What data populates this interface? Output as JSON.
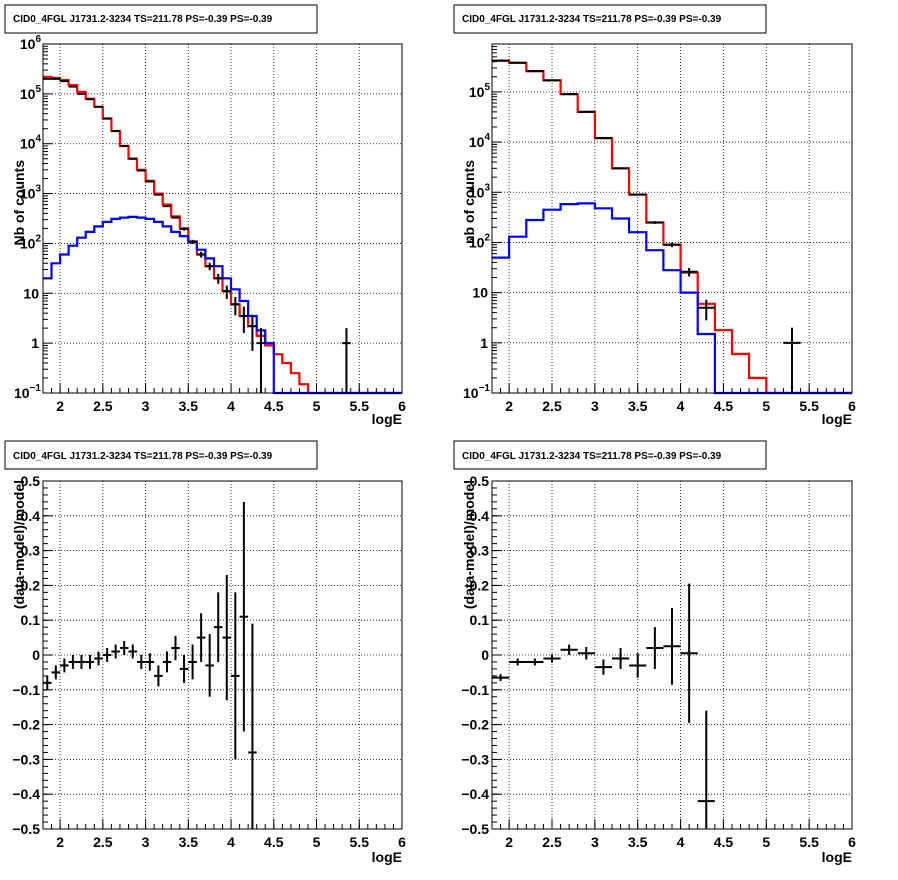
{
  "chart_data": [
    {
      "type": "histogram",
      "panel": "top-left",
      "title": "CID0_4FGL J1731.2-3234 TS=211.78 PS=-0.39 PS=-0.39",
      "xlabel": "logE",
      "ylabel": "Nb of counts",
      "xlim": [
        1.8,
        6.0
      ],
      "ylim": [
        0.1,
        1000000
      ],
      "yscale": "log",
      "grid": true,
      "x_ticks": [
        "2",
        "2.5",
        "3",
        "3.5",
        "4",
        "4.5",
        "5",
        "5.5",
        "6"
      ],
      "y_ticks": [
        {
          "value": 0.1,
          "base": "10",
          "exp": "−1"
        },
        {
          "value": 1,
          "base": "1",
          "exp": ""
        },
        {
          "value": 10,
          "base": "10",
          "exp": ""
        },
        {
          "value": 100,
          "base": "10",
          "exp": "2"
        },
        {
          "value": 1000,
          "base": "10",
          "exp": "3"
        },
        {
          "value": 10000,
          "base": "10",
          "exp": "4"
        },
        {
          "value": 100000,
          "base": "10",
          "exp": "5"
        },
        {
          "value": 1000000,
          "base": "10",
          "exp": "6"
        }
      ],
      "bin_edges_start": 1.8,
      "bin_width": 0.1,
      "series": [
        {
          "color": "#ff0000",
          "values": [
            220000,
            210000,
            190000,
            150000,
            110000,
            80000,
            55000,
            32000,
            18000,
            9000,
            5000,
            3000,
            1800,
            1000,
            600,
            350,
            200,
            110,
            60,
            35,
            20,
            11,
            6,
            3.5,
            2.2,
            1.4,
            0.9,
            0.6,
            0.4,
            0.25,
            0.15,
            0.1,
            0.1,
            0.1,
            0.1,
            0.1,
            0.1,
            0.1,
            0.1,
            0.1,
            0.1,
            0.1
          ]
        },
        {
          "color": "#0000ff",
          "values": [
            20,
            40,
            60,
            90,
            130,
            170,
            220,
            270,
            310,
            330,
            340,
            330,
            310,
            270,
            220,
            170,
            140,
            105,
            75,
            50,
            35,
            20,
            12,
            7,
            3.5,
            1.8,
            1,
            0.1,
            0.1,
            0.1,
            0.1,
            0.1,
            0.1,
            0.1,
            0.1,
            0.1,
            0.1,
            0.1,
            0.1,
            0.1,
            0.1,
            0.1
          ]
        }
      ],
      "data_points": {
        "x": [
          1.85,
          1.95,
          2.05,
          2.15,
          2.25,
          2.35,
          2.45,
          2.55,
          2.65,
          2.75,
          2.85,
          2.95,
          3.05,
          3.15,
          3.25,
          3.35,
          3.45,
          3.55,
          3.65,
          3.75,
          3.85,
          3.95,
          4.05,
          4.15,
          4.25,
          4.35,
          5.35
        ],
        "y": [
          200000,
          200000,
          180000,
          140000,
          100000,
          78000,
          55000,
          32000,
          18000,
          9000,
          5000,
          2900,
          1750,
          950,
          560,
          330,
          195,
          108,
          60,
          35,
          20,
          11,
          6,
          3.5,
          2.2,
          1,
          1
        ],
        "yerr": [
          450,
          450,
          420,
          370,
          320,
          280,
          235,
          180,
          135,
          95,
          70,
          54,
          42,
          31,
          24,
          18,
          14,
          10,
          8,
          6,
          4.5,
          3.3,
          2.4,
          1.9,
          1.5,
          1,
          1
        ]
      }
    },
    {
      "type": "histogram",
      "panel": "top-right",
      "title": "CID0_4FGL J1731.2-3234 TS=211.78 PS=-0.39 PS=-0.39",
      "xlabel": "logE",
      "ylabel": "nb of counts",
      "xlim": [
        1.8,
        6.0
      ],
      "ylim": [
        0.1,
        900000
      ],
      "yscale": "log",
      "grid": true,
      "x_ticks": [
        "2",
        "2.5",
        "3",
        "3.5",
        "4",
        "4.5",
        "5",
        "5.5",
        "6"
      ],
      "y_ticks": [
        {
          "value": 0.1,
          "base": "10",
          "exp": "−1"
        },
        {
          "value": 1,
          "base": "1",
          "exp": ""
        },
        {
          "value": 10,
          "base": "10",
          "exp": ""
        },
        {
          "value": 100,
          "base": "10",
          "exp": "2"
        },
        {
          "value": 1000,
          "base": "10",
          "exp": "3"
        },
        {
          "value": 10000,
          "base": "10",
          "exp": "4"
        },
        {
          "value": 100000,
          "base": "10",
          "exp": "5"
        }
      ],
      "bin_edges_start": 1.8,
      "bin_width": 0.2,
      "series": [
        {
          "color": "#ff0000",
          "values": [
            420000,
            380000,
            260000,
            170000,
            90000,
            40000,
            12000,
            3000,
            900,
            250,
            90,
            25,
            6,
            1.8,
            0.6,
            0.2,
            0.1,
            0.1,
            0.1,
            0.1,
            0.1
          ]
        },
        {
          "color": "#0000ff",
          "values": [
            50,
            130,
            280,
            450,
            580,
            600,
            480,
            300,
            160,
            70,
            28,
            10,
            1.5,
            0.1,
            0.1,
            0.1,
            0.1,
            0.1,
            0.1,
            0.1,
            0.1
          ]
        }
      ],
      "data_points": {
        "x": [
          1.9,
          2.1,
          2.3,
          2.5,
          2.7,
          2.9,
          3.1,
          3.3,
          3.5,
          3.7,
          3.9,
          4.1,
          4.3,
          5.3
        ],
        "y": [
          420000,
          380000,
          260000,
          170000,
          90000,
          40000,
          12000,
          3000,
          900,
          250,
          90,
          26,
          5,
          1
        ],
        "yerr": [
          650,
          620,
          510,
          410,
          300,
          200,
          110,
          55,
          30,
          16,
          9.5,
          5,
          2.2,
          1
        ]
      }
    },
    {
      "type": "scatter",
      "panel": "bottom-left",
      "title": "CID0_4FGL J1731.2-3234 TS=211.78 PS=-0.39 PS=-0.39",
      "xlabel": "logE",
      "ylabel": "(data-model)/model",
      "xlim": [
        1.8,
        6.0
      ],
      "ylim": [
        -0.5,
        0.5
      ],
      "grid": true,
      "x_ticks": [
        "2",
        "2.5",
        "3",
        "3.5",
        "4",
        "4.5",
        "5",
        "5.5",
        "6"
      ],
      "y_ticks": [
        "−0.5",
        "−0.4",
        "−0.3",
        "−0.2",
        "−0.1",
        "0",
        "0.1",
        "0.2",
        "0.3",
        "0.4",
        "0.5"
      ],
      "y_tick_values": [
        -0.5,
        -0.4,
        -0.3,
        -0.2,
        -0.1,
        0,
        0.1,
        0.2,
        0.3,
        0.4,
        0.5
      ],
      "data_points": {
        "x": [
          1.85,
          1.95,
          2.05,
          2.15,
          2.25,
          2.35,
          2.45,
          2.55,
          2.65,
          2.75,
          2.85,
          2.95,
          3.05,
          3.15,
          3.25,
          3.35,
          3.45,
          3.55,
          3.65,
          3.75,
          3.85,
          3.95,
          4.05,
          4.15,
          4.25
        ],
        "xerr": 0.05,
        "y": [
          -0.08,
          -0.05,
          -0.03,
          -0.02,
          -0.02,
          -0.02,
          -0.01,
          0.0,
          0.01,
          0.02,
          0.01,
          -0.02,
          -0.02,
          -0.06,
          -0.02,
          0.02,
          -0.04,
          -0.02,
          0.05,
          -0.03,
          0.08,
          0.05,
          -0.06,
          0.11,
          -0.28
        ],
        "yerr": [
          0.02,
          0.02,
          0.02,
          0.02,
          0.02,
          0.02,
          0.02,
          0.02,
          0.02,
          0.02,
          0.02,
          0.02,
          0.025,
          0.03,
          0.03,
          0.035,
          0.04,
          0.05,
          0.07,
          0.09,
          0.1,
          0.18,
          0.24,
          0.33,
          0.37
        ]
      }
    },
    {
      "type": "scatter",
      "panel": "bottom-right",
      "title": "CID0_4FGL J1731.2-3234 TS=211.78 PS=-0.39 PS=-0.39",
      "xlabel": "logE",
      "ylabel": "(data-model)/model",
      "xlim": [
        1.8,
        6.0
      ],
      "ylim": [
        -0.5,
        0.5
      ],
      "grid": true,
      "x_ticks": [
        "2",
        "2.5",
        "3",
        "3.5",
        "4",
        "4.5",
        "5",
        "5.5",
        "6"
      ],
      "y_ticks": [
        "−0.5",
        "−0.4",
        "−0.3",
        "−0.2",
        "−0.1",
        "0",
        "0.1",
        "0.2",
        "0.3",
        "0.4",
        "0.5"
      ],
      "y_tick_values": [
        -0.5,
        -0.4,
        -0.3,
        -0.2,
        -0.1,
        0,
        0.1,
        0.2,
        0.3,
        0.4,
        0.5
      ],
      "data_points": {
        "x": [
          1.9,
          2.1,
          2.3,
          2.5,
          2.7,
          2.9,
          3.1,
          3.3,
          3.5,
          3.7,
          3.9,
          4.1,
          4.3
        ],
        "xerr": 0.1,
        "y": [
          -0.065,
          -0.02,
          -0.02,
          -0.01,
          0.015,
          0.005,
          -0.035,
          -0.01,
          -0.03,
          0.02,
          0.025,
          0.005,
          -0.42
        ],
        "yerr": [
          0.01,
          0.01,
          0.01,
          0.012,
          0.015,
          0.018,
          0.022,
          0.03,
          0.035,
          0.06,
          0.11,
          0.2,
          0.26
        ]
      }
    }
  ]
}
